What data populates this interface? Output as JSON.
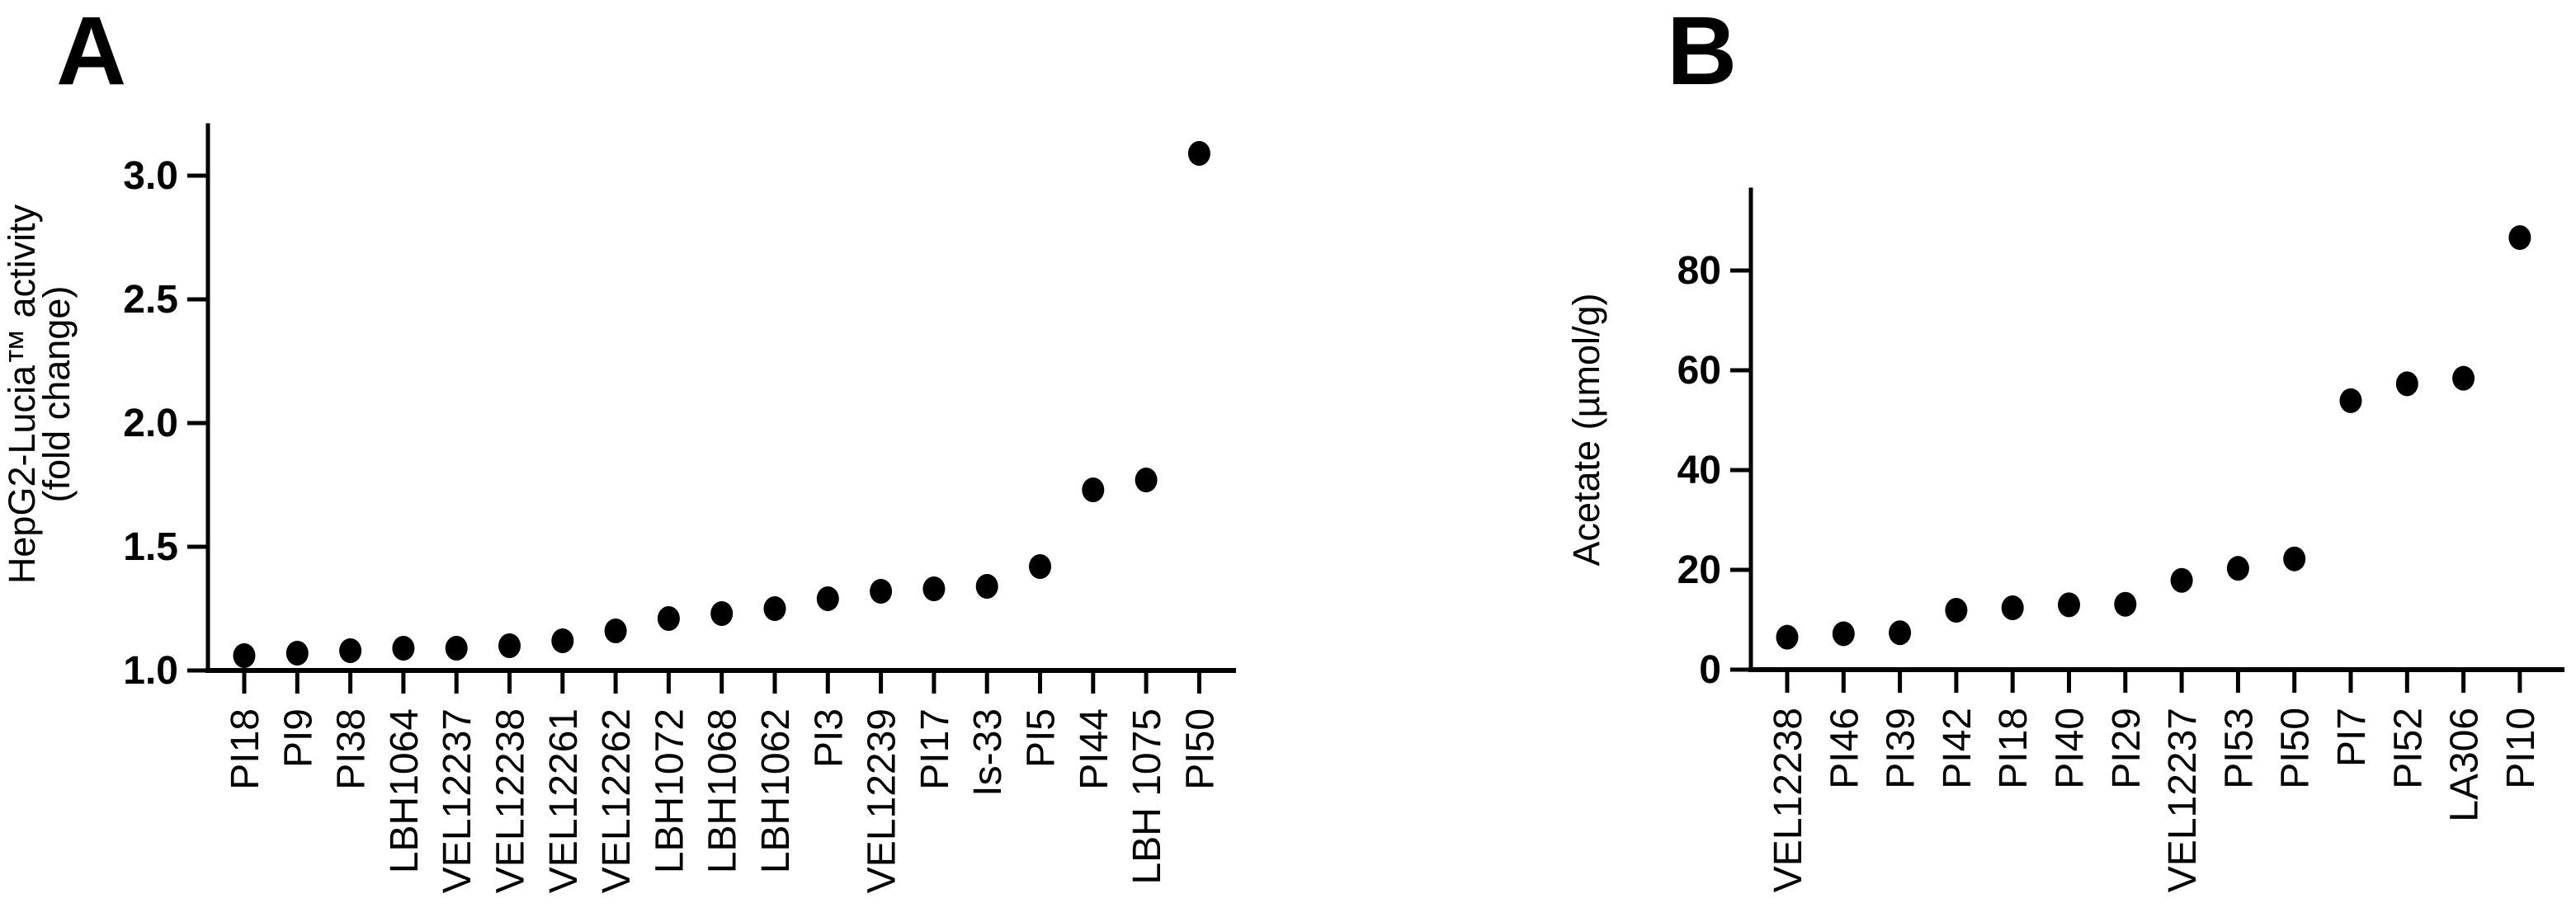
{
  "figure": {
    "background_color": "#ffffff",
    "marker_color": "#000000",
    "axis_color": "#000000"
  },
  "chart_data": [
    {
      "type": "scatter",
      "panel": "A",
      "title": "",
      "xlabel": "",
      "ylabel_lines": [
        "HepG2-Lucia™ activity",
        "(fold change)"
      ],
      "categories": [
        "PI18",
        "PI9",
        "PI38",
        "LBH1064",
        "VEL12237",
        "VEL12238",
        "VEL12261",
        "VEL12262",
        "LBH1072",
        "LBH1068",
        "LBH1062",
        "PI3",
        "VEL12239",
        "PI17",
        "Is-33",
        "PI5",
        "PI44",
        "LBH 1075",
        "PI50"
      ],
      "values": [
        1.06,
        1.07,
        1.08,
        1.09,
        1.09,
        1.1,
        1.12,
        1.16,
        1.21,
        1.23,
        1.25,
        1.29,
        1.32,
        1.33,
        1.34,
        1.42,
        1.73,
        1.77,
        3.09
      ],
      "yticks": [
        1.0,
        1.5,
        2.0,
        2.5,
        3.0
      ],
      "ytick_labels": [
        "1.0",
        "1.5",
        "2.0",
        "2.5",
        "3.0"
      ],
      "ylim": [
        1.0,
        3.2
      ],
      "grid": false,
      "legend": false,
      "marker": "filled-circle"
    },
    {
      "type": "scatter",
      "panel": "B",
      "title": "",
      "xlabel": "",
      "ylabel_lines": [
        "Acetate (µmol/g)"
      ],
      "categories": [
        "VEL12238",
        "PI46",
        "PI39",
        "PI42",
        "PI18",
        "PI40",
        "PI29",
        "VEL12237",
        "PI53",
        "PI50",
        "PI7",
        "PI52",
        "LA306",
        "PI10"
      ],
      "values": [
        6.5,
        7.2,
        7.4,
        11.9,
        12.4,
        13.0,
        13.1,
        17.9,
        20.3,
        22.2,
        53.9,
        57.3,
        58.4,
        86.6
      ],
      "yticks": [
        0,
        20,
        40,
        60,
        80
      ],
      "ytick_labels": [
        "0",
        "20",
        "40",
        "60",
        "80"
      ],
      "ylim": [
        0,
        96
      ],
      "grid": false,
      "legend": false,
      "marker": "filled-circle"
    }
  ]
}
